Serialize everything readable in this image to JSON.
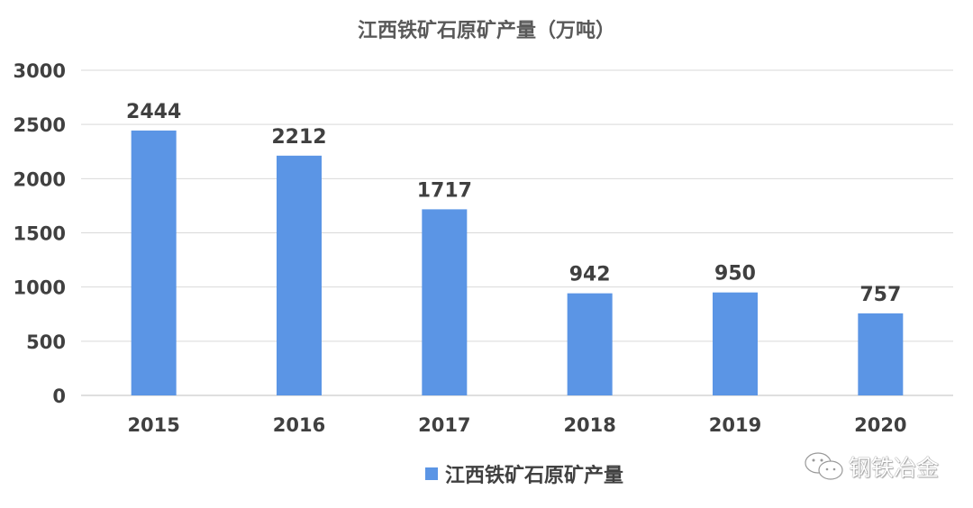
{
  "chart_data": {
    "type": "bar",
    "title": "江西铁矿石原矿产量（万吨）",
    "categories": [
      "2015",
      "2016",
      "2017",
      "2018",
      "2019",
      "2020"
    ],
    "series": [
      {
        "name": "江西铁矿石原矿产量",
        "values": [
          2444,
          2212,
          1717,
          942,
          950,
          757
        ],
        "color": "#5b95e5"
      }
    ],
    "ylim": [
      0,
      3000
    ],
    "yticks": [
      0,
      500,
      1000,
      1500,
      2000,
      2500,
      3000
    ],
    "grid": true,
    "legend": "bottom",
    "data_labels": true
  },
  "watermark": {
    "text": "钢铁冶金",
    "icon": "wechat-icon"
  }
}
